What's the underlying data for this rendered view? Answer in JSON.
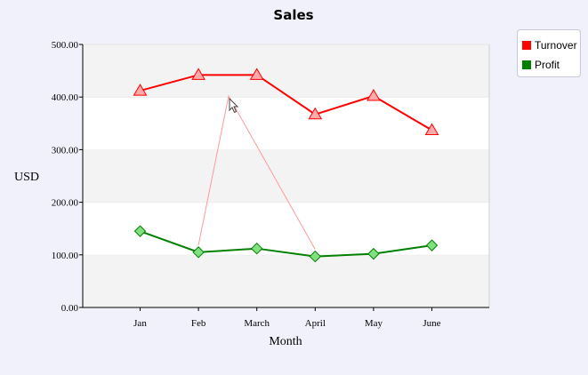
{
  "chart_data": {
    "type": "line",
    "title": "Sales",
    "xlabel": "Month",
    "ylabel": "USD",
    "categories": [
      "Jan",
      "Feb",
      "March",
      "April",
      "May",
      "June"
    ],
    "ylim": [
      0,
      500
    ],
    "yticks": [
      "0.00",
      "100.00",
      "200.00",
      "300.00",
      "400.00",
      "500.00"
    ],
    "grid": "alternating horizontal bands",
    "legend_position": "top-right",
    "series": [
      {
        "name": "Turnover",
        "color": "#ff0000",
        "marker": "triangle",
        "values": [
          412,
          442,
          442,
          367,
          402,
          337
        ]
      },
      {
        "name": "Profit",
        "color": "#008000",
        "marker": "diamond",
        "values": [
          145,
          105,
          112,
          97,
          102,
          118
        ]
      }
    ],
    "tooltip_pointer": {
      "category": "Feb",
      "series": "Turnover",
      "color": "#ff9a9a"
    }
  }
}
